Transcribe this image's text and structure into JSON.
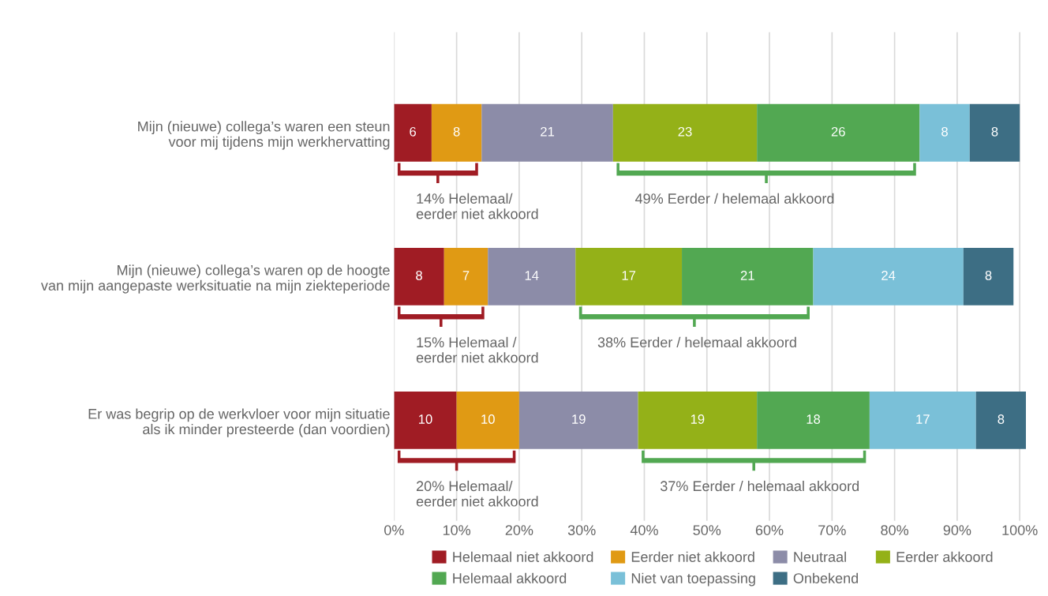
{
  "chart_data": {
    "type": "bar",
    "orientation": "horizontal",
    "stacked": true,
    "data_labels": true,
    "categories": [
      "Mijn (nieuwe) collega’s waren een steun\nvoor mij tijdens mijn werkhervatting",
      "Mijn (nieuwe) collega’s waren op de hoogte\nvan mijn aangepaste werksituatie na mijn ziekteperiode",
      "Er was begrip op de werkvloer voor mijn situatie\nals ik minder presteerde (dan voordien)"
    ],
    "series": [
      {
        "name": "Helemaal niet akkoord",
        "color": "#a01c24",
        "values": [
          6,
          8,
          10
        ]
      },
      {
        "name": "Eerder niet akkoord",
        "color": "#e09a14",
        "values": [
          8,
          7,
          10
        ]
      },
      {
        "name": "Neutraal",
        "color": "#8c8ca8",
        "values": [
          21,
          14,
          19
        ]
      },
      {
        "name": "Eerder akkoord",
        "color": "#94b118",
        "values": [
          23,
          17,
          19
        ]
      },
      {
        "name": "Helemaal akkoord",
        "color": "#52a852",
        "values": [
          26,
          21,
          18
        ]
      },
      {
        "name": "Niet van toepassing",
        "color": "#7ac0d8",
        "values": [
          8,
          24,
          17
        ]
      },
      {
        "name": "Onbekend",
        "color": "#3d6e84",
        "values": [
          8,
          8,
          8
        ]
      }
    ],
    "xlim": [
      0,
      101
    ],
    "xticks": [
      {
        "value": 0,
        "label": "0%"
      },
      {
        "value": 10,
        "label": "10%"
      },
      {
        "value": 20,
        "label": "20%"
      },
      {
        "value": 30,
        "label": "30%"
      },
      {
        "value": 40,
        "label": "40%"
      },
      {
        "value": 50,
        "label": "50%"
      },
      {
        "value": 60,
        "label": "60%"
      },
      {
        "value": 70,
        "label": "70%"
      },
      {
        "value": 80,
        "label": "80%"
      },
      {
        "value": 90,
        "label": "90%"
      },
      {
        "value": 100,
        "label": "100%"
      }
    ],
    "grid": "x",
    "legend": "bottom",
    "annotations": [
      "14% Helemaal/\neerder niet akkoord",
      "49% Eerder / helemaal akkoord",
      "15% Helemaal /\neerder niet akkoord",
      "38% Eerder / helemaal akkoord",
      "20% Helemaal/\neerder niet akkoord",
      "37% Eerder / helemaal akkoord"
    ]
  }
}
